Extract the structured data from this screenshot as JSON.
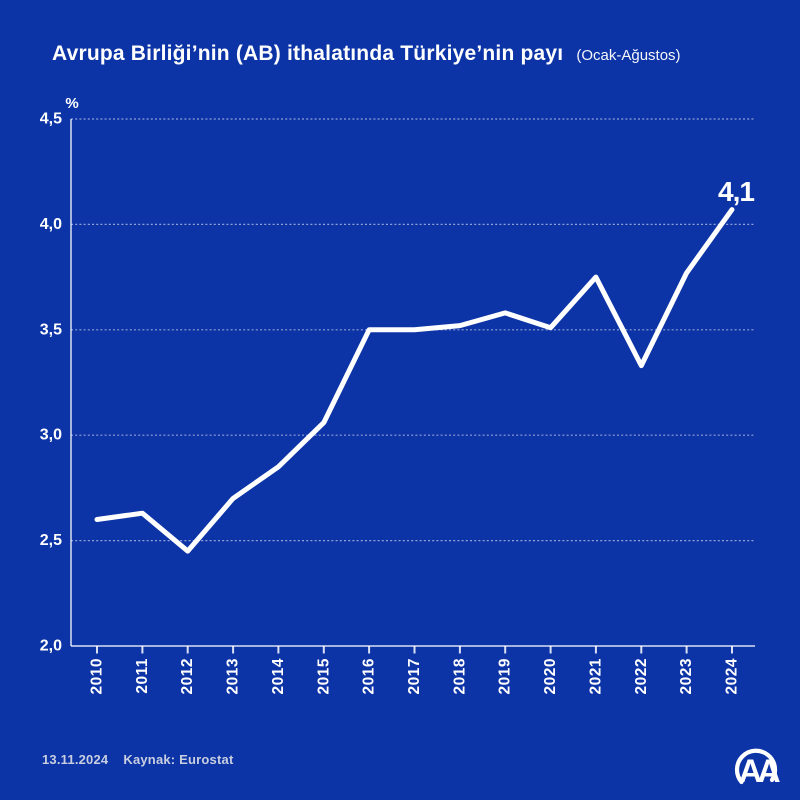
{
  "header": {
    "title": "Avrupa Birliği’nin (AB) ithalatında Türkiye’nin payı",
    "subtitle": "(Ocak-Ağustos)"
  },
  "chart_data": {
    "type": "line",
    "title": "Avrupa Birliği’nin (AB) ithalatında Türkiye’nin payı",
    "subtitle": "(Ocak-Ağustos)",
    "unit_label": "%",
    "categories": [
      "2010",
      "2011",
      "2012",
      "2013",
      "2014",
      "2015",
      "2016",
      "2017",
      "2018",
      "2019",
      "2020",
      "2021",
      "2022",
      "2023",
      "2024"
    ],
    "values": [
      2.6,
      2.63,
      2.45,
      2.7,
      2.85,
      3.06,
      3.5,
      3.5,
      3.52,
      3.58,
      3.51,
      3.75,
      3.33,
      3.77,
      4.07
    ],
    "last_point_label": "4,1",
    "xlabel": "",
    "ylabel": "%",
    "ylim": [
      2.0,
      4.5
    ],
    "yticks": [
      2.0,
      2.5,
      3.0,
      3.5,
      4.0,
      4.5
    ],
    "ytick_labels": [
      "2,0",
      "2,5",
      "3,0",
      "3,5",
      "4,0",
      "4,5"
    ],
    "grid": "horizontal-dashed",
    "legend": "none",
    "line_color": "#ffffff"
  },
  "footer": {
    "date": "13.11.2024",
    "source": "Kaynak: Eurostat"
  },
  "logo": {
    "name": "Anadolu Ajansı",
    "monogram": "AA"
  },
  "colors": {
    "background": "#0C34A6",
    "text": "#ffffff",
    "muted_text": "#C9CFE0",
    "grid": "rgba(255,255,255,0.55)",
    "axis": "rgba(255,255,255,0.85)"
  }
}
